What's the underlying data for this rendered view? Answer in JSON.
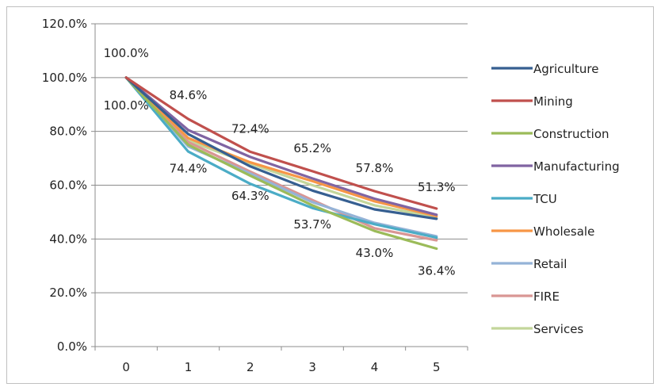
{
  "chart_data": {
    "type": "line",
    "title": "",
    "xlabel": "",
    "ylabel": "",
    "categories": [
      "0",
      "1",
      "2",
      "3",
      "4",
      "5"
    ],
    "ylim": [
      0,
      1.2
    ],
    "y_tick_values": [
      0,
      0.2,
      0.4,
      0.6,
      0.8,
      1.0,
      1.2
    ],
    "y_tick_labels": [
      "0.0%",
      "20.0%",
      "40.0%",
      "60.0%",
      "80.0%",
      "100.0%",
      "120.0%"
    ],
    "grid": "horizontal",
    "legend_position": "right",
    "series": [
      {
        "name": "Agriculture",
        "color": "#365f91",
        "values": [
          1.0,
          0.79,
          0.67,
          0.58,
          0.51,
          0.475
        ]
      },
      {
        "name": "Mining",
        "color": "#c0504d",
        "values": [
          1.0,
          0.846,
          0.724,
          0.652,
          0.578,
          0.513
        ]
      },
      {
        "name": "Construction",
        "color": "#9bbb59",
        "values": [
          1.0,
          0.75,
          0.635,
          0.525,
          0.43,
          0.364
        ]
      },
      {
        "name": "Manufacturing",
        "color": "#8064a2",
        "values": [
          1.0,
          0.805,
          0.705,
          0.625,
          0.55,
          0.49
        ]
      },
      {
        "name": "TCU",
        "color": "#4bacc6",
        "values": [
          1.0,
          0.725,
          0.605,
          0.515,
          0.455,
          0.405
        ]
      },
      {
        "name": "Wholesale",
        "color": "#f79646",
        "values": [
          1.0,
          0.775,
          0.685,
          0.615,
          0.54,
          0.485
        ]
      },
      {
        "name": "Retail",
        "color": "#95b3d7",
        "values": [
          1.0,
          0.744,
          0.643,
          0.537,
          0.46,
          0.41
        ]
      },
      {
        "name": "FIRE",
        "color": "#d99694",
        "values": [
          1.0,
          0.76,
          0.65,
          0.545,
          0.44,
          0.395
        ]
      },
      {
        "name": "Services",
        "color": "#c3d69b",
        "values": [
          1.0,
          0.765,
          0.68,
          0.6,
          0.525,
          0.48
        ]
      }
    ],
    "annotations": [
      {
        "x": "0",
        "y": 1.0,
        "text": "100.0%"
      },
      {
        "x": "0",
        "y": 1.0,
        "text": "100.0%"
      },
      {
        "x": "1",
        "y": 0.846,
        "text": "84.6%"
      },
      {
        "x": "2",
        "y": 0.724,
        "text": "72.4%"
      },
      {
        "x": "3",
        "y": 0.652,
        "text": "65.2%"
      },
      {
        "x": "4",
        "y": 0.578,
        "text": "57.8%"
      },
      {
        "x": "5",
        "y": 0.513,
        "text": "51.3%"
      },
      {
        "x": "1",
        "y": 0.744,
        "text": "74.4%"
      },
      {
        "x": "2",
        "y": 0.643,
        "text": "64.3%"
      },
      {
        "x": "3",
        "y": 0.537,
        "text": "53.7%"
      },
      {
        "x": "4",
        "y": 0.43,
        "text": "43.0%"
      },
      {
        "x": "5",
        "y": 0.364,
        "text": "36.4%"
      }
    ]
  }
}
